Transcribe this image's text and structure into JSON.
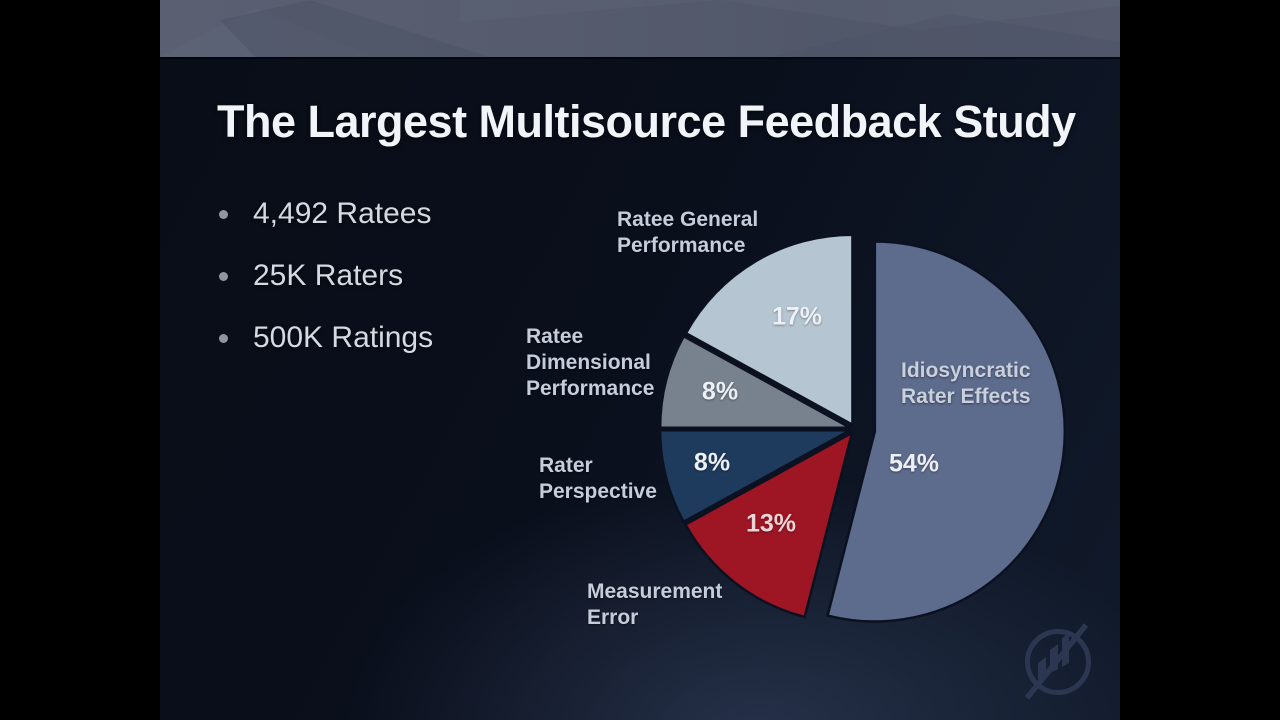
{
  "slide": {
    "title": "The Largest Multisource Feedback Study",
    "bullets": [
      "4,492 Ratees",
      "25K Raters",
      "500K Ratings"
    ]
  },
  "chart_data": {
    "type": "pie",
    "start_angle_deg": 0,
    "direction": "clockwise",
    "unit": "%",
    "legend": "none",
    "labels_position": "outside, largest-slice label inside",
    "gap_color": "#0b1120",
    "slices": [
      {
        "label": "Idiosyncratic\nRater Effects",
        "value": 54,
        "display": "54%",
        "color": "#5d6b8d",
        "explode": 20
      },
      {
        "label": "Measurement\nError",
        "value": 13,
        "display": "13%",
        "color": "#9e1523",
        "explode": 5
      },
      {
        "label": "Rater\nPerspective",
        "value": 8,
        "display": "8%",
        "color": "#1e3a5c",
        "explode": 5
      },
      {
        "label": "Ratee\nDimensional\nPerformance",
        "value": 8,
        "display": "8%",
        "color": "#78828e",
        "explode": 5
      },
      {
        "label": "Ratee General\nPerformance",
        "value": 17,
        "display": "17%",
        "color": "#b6c5d2",
        "explode": 5
      }
    ]
  },
  "colors": {
    "slide_background": "#0b1120",
    "header_band": "#565c6e",
    "title_text": "#f1f4f8",
    "body_text": "#d5dae2",
    "label_text": "#c6ccda",
    "percent_text": "#edf1f7",
    "logo": "#2c3650"
  },
  "branding": {
    "logo_name": "circle-rising-bars-slash-logo"
  }
}
